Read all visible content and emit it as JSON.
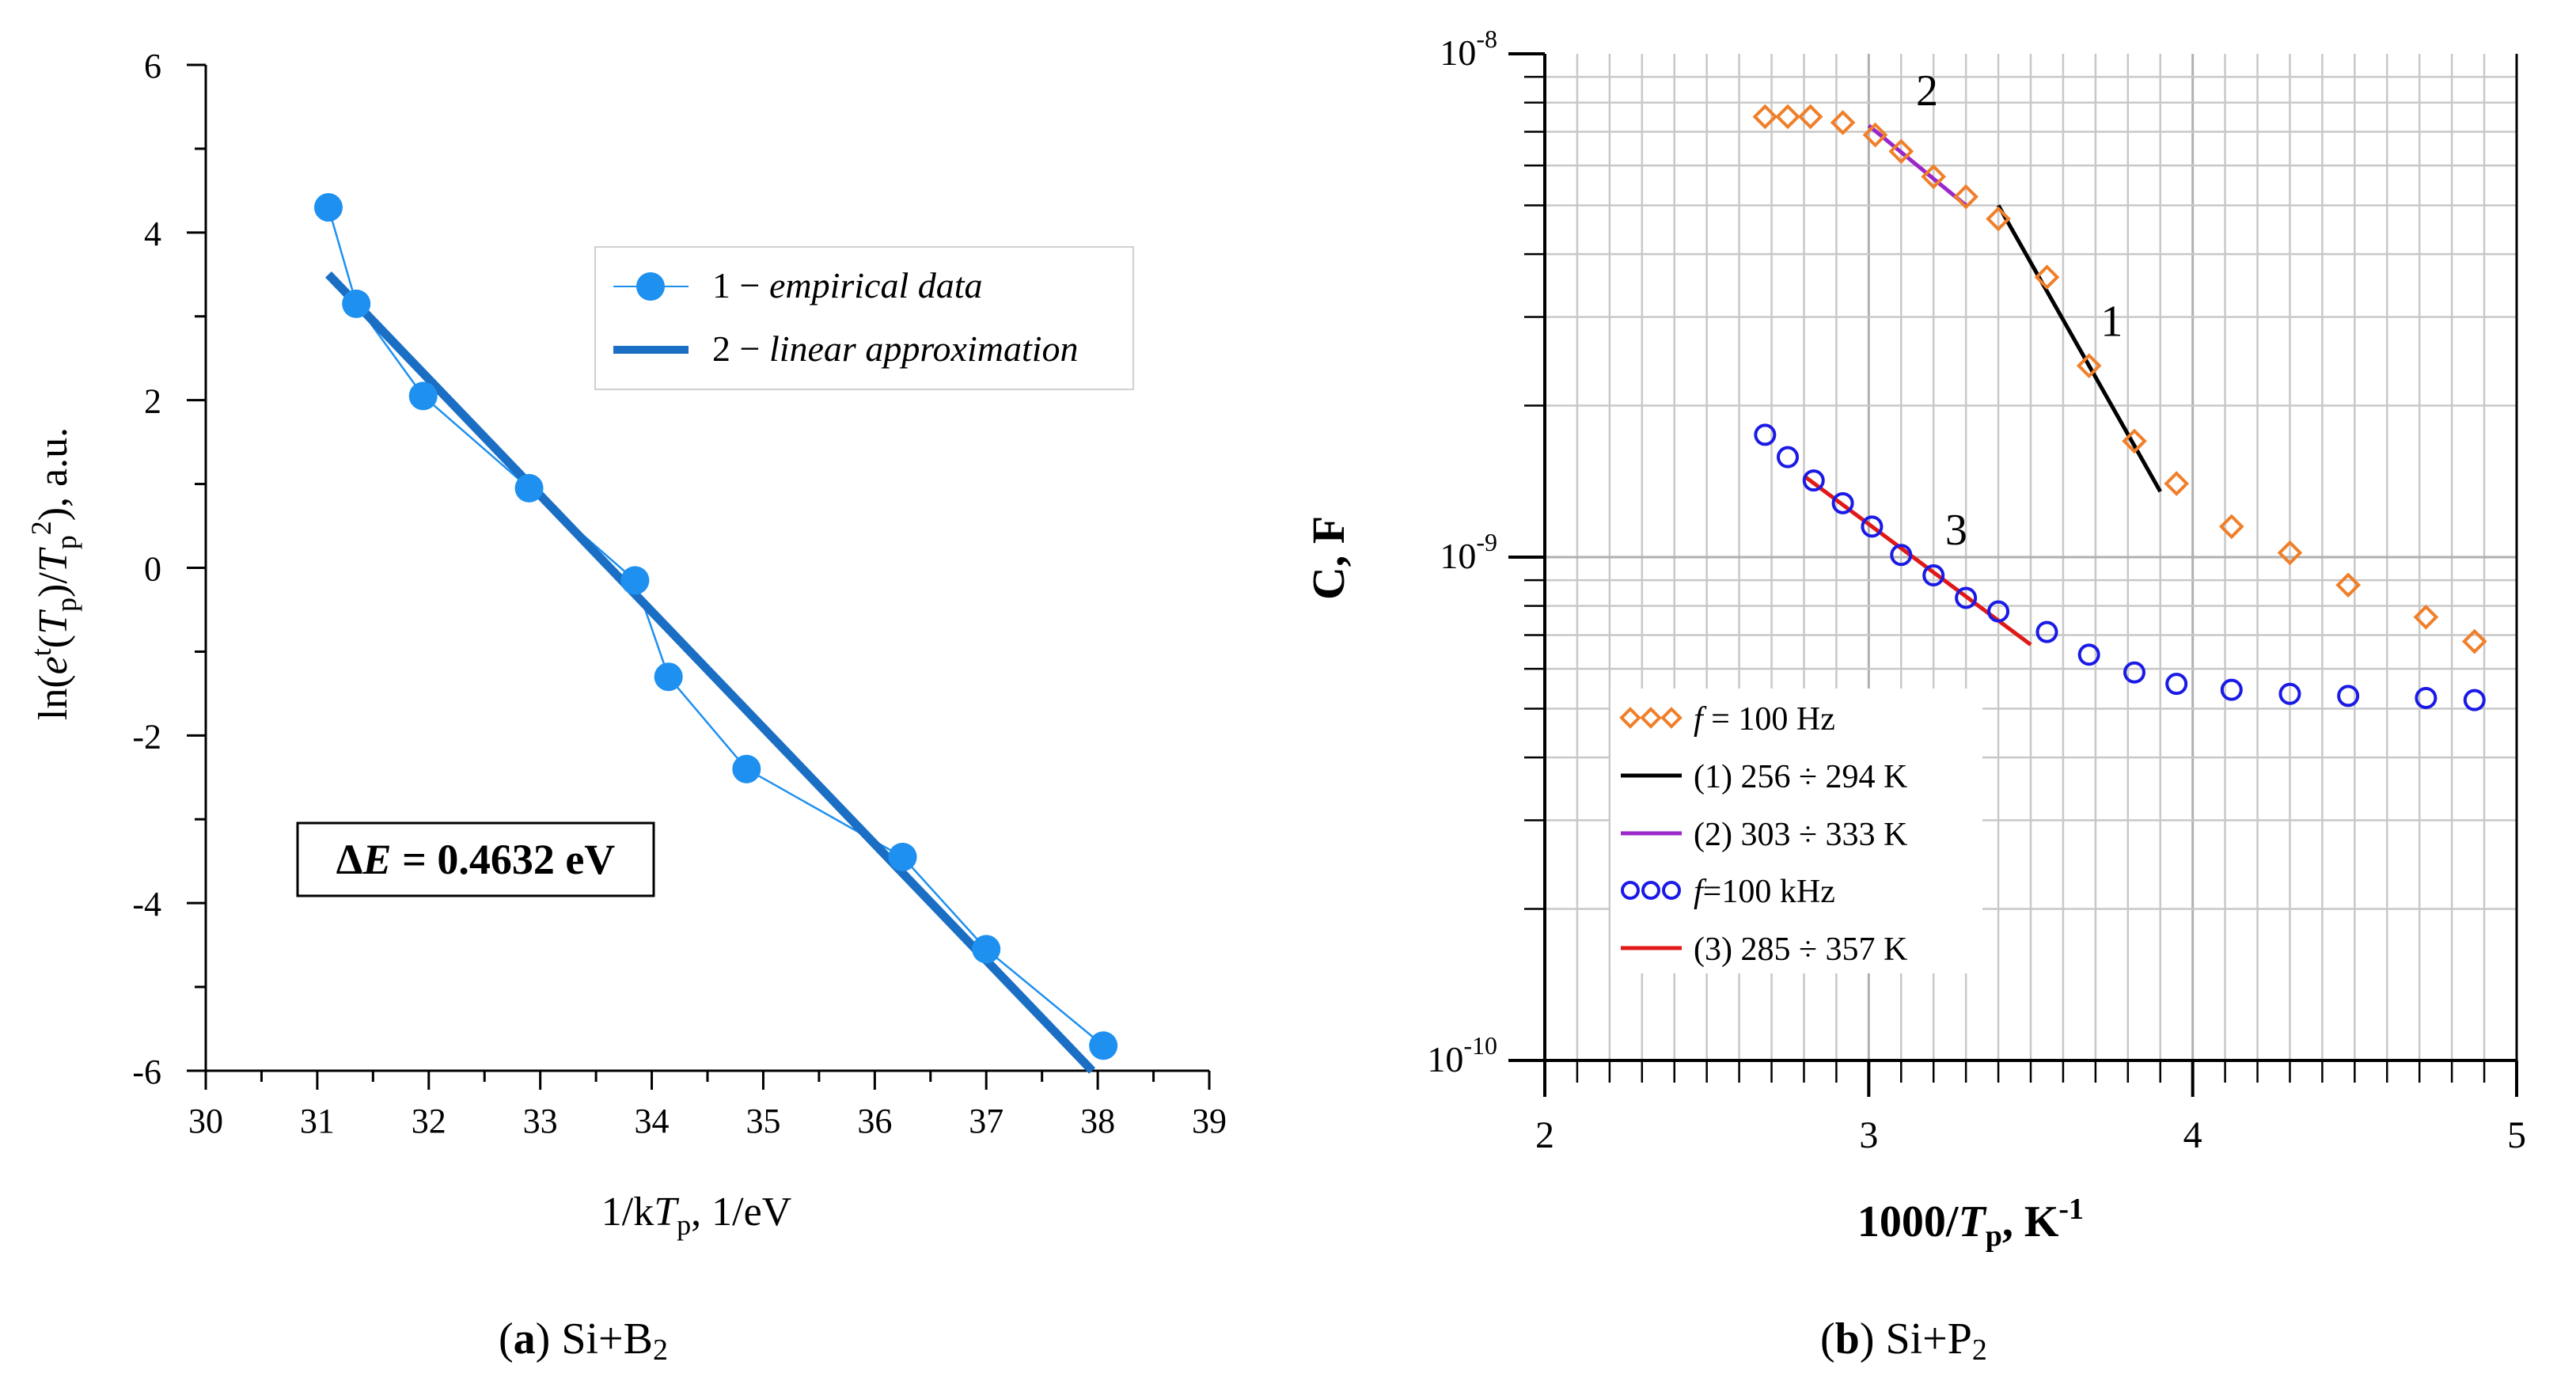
{
  "chart_data": [
    {
      "panel": "a",
      "type": "scatter",
      "caption": {
        "label": "a",
        "text": "Si+B",
        "sub": "2"
      },
      "xlabel": {
        "pre": "1/k",
        "it": "T",
        "sub": "p",
        "post": ", 1/eV"
      },
      "ylabel": {
        "pre": "ln(",
        "it1": "e",
        "sup1": "t",
        "mid": "(",
        "it2": "T",
        "sub2": "p",
        "mid2": ")/",
        "it3": "T",
        "sub3": "p",
        "sup3": "2",
        "post": "), a.u."
      },
      "xlim": [
        30,
        39
      ],
      "ylim": [
        -6,
        6
      ],
      "xticks": [
        "30",
        "31",
        "32",
        "33",
        "34",
        "35",
        "36",
        "37",
        "38",
        "39"
      ],
      "yticks": [
        "-6",
        "-4",
        "-2",
        "0",
        "2",
        "4",
        "6"
      ],
      "grid": false,
      "legend_position": "top-right",
      "series": [
        {
          "name": "1 − empirical data",
          "num": "1 − ",
          "text": "empirical data",
          "kind": "line-markers",
          "color": "#1e90f0",
          "x": [
            31.1,
            31.35,
            31.95,
            32.9,
            33.85,
            34.15,
            34.85,
            36.25,
            37.0,
            38.05
          ],
          "y": [
            4.3,
            3.15,
            2.05,
            0.95,
            -0.15,
            -1.3,
            -2.4,
            -3.45,
            -4.55,
            -5.7
          ]
        },
        {
          "name": "2 − linear approximation",
          "num": "2 − ",
          "text": "linear approximation",
          "kind": "line",
          "color": "#1a6fc4",
          "x": [
            31.1,
            37.95
          ],
          "y": [
            3.5,
            -6.0
          ]
        }
      ],
      "annotation": {
        "delta": "Δ",
        "it": "E",
        "rest": " = 0.4632 eV"
      }
    },
    {
      "panel": "b",
      "type": "scatter",
      "caption": {
        "label": "b",
        "text": "Si+P",
        "sub": "2"
      },
      "xlabel": {
        "pre": "1000/",
        "it": "T",
        "sub": "p",
        "post": ", K",
        "sup": "-1"
      },
      "ylabel": "C, F",
      "xlim": [
        2,
        5
      ],
      "ylim": [
        1e-10,
        1e-08
      ],
      "yscale": "log",
      "xticks": [
        "2",
        "3",
        "4",
        "5"
      ],
      "yticks": [
        {
          "base": "10",
          "exp": "-8",
          "value": 1e-08
        },
        {
          "base": "10",
          "exp": "-9",
          "value": 1e-09
        },
        {
          "base": "10",
          "exp": "-10",
          "value": 1e-10
        }
      ],
      "grid": true,
      "legend_position": "bottom-left",
      "series": [
        {
          "name": "f = 100 Hz",
          "it": "f",
          "text": " = 100 Hz",
          "kind": "markers-diamond",
          "color": "#f07f2a",
          "x": [
            2.68,
            2.75,
            2.82,
            2.92,
            3.02,
            3.1,
            3.2,
            3.3,
            3.4,
            3.55,
            3.68,
            3.82,
            3.95,
            4.12,
            4.3,
            4.48,
            4.72,
            4.87
          ],
          "y": [
            7.5e-09,
            7.5e-09,
            7.5e-09,
            7.3e-09,
            6.9e-09,
            6.4e-09,
            5.7e-09,
            5.2e-09,
            4.7e-09,
            3.6e-09,
            2.4e-09,
            1.7e-09,
            1.4e-09,
            1.15e-09,
            1.02e-09,
            8.8e-10,
            7.6e-10,
            6.8e-10
          ]
        },
        {
          "name": "(1) 256 ÷ 294 K",
          "text": "(1) 256 ÷ 294 K",
          "kind": "line",
          "color": "#000000",
          "x": [
            3.4,
            3.9
          ],
          "y": [
            5e-09,
            1.35e-09
          ]
        },
        {
          "name": "(2) 303 ÷ 333 K",
          "text": "(2) 303 ÷ 333 K",
          "kind": "line",
          "color": "#9b27c9",
          "x": [
            3.0,
            3.3
          ],
          "y": [
            7.2e-09,
            5e-09
          ]
        },
        {
          "name": "f=100 kHz",
          "it": "f",
          "text": "=100 kHz",
          "kind": "markers-circle",
          "color": "#1a1ae6",
          "x": [
            2.68,
            2.75,
            2.83,
            2.92,
            3.01,
            3.1,
            3.2,
            3.3,
            3.4,
            3.55,
            3.68,
            3.82,
            3.95,
            4.12,
            4.3,
            4.48,
            4.72,
            4.87
          ],
          "y": [
            1.75e-09,
            1.58e-09,
            1.42e-09,
            1.28e-09,
            1.15e-09,
            1.01e-09,
            9.2e-10,
            8.3e-10,
            7.8e-10,
            7.1e-10,
            6.4e-10,
            5.9e-10,
            5.6e-10,
            5.45e-10,
            5.35e-10,
            5.3e-10,
            5.25e-10,
            5.2e-10
          ]
        },
        {
          "name": "(3) 285 ÷ 357 K",
          "text": "(3) 285 ÷ 357 K",
          "kind": "line",
          "color": "#e01818",
          "x": [
            2.8,
            3.5
          ],
          "y": [
            1.45e-09,
            6.7e-10
          ]
        }
      ],
      "curve_labels": [
        {
          "text": "2",
          "x": 3.18,
          "y": 7.9e-09
        },
        {
          "text": "1",
          "x": 3.75,
          "y": 2.75e-09
        },
        {
          "text": "3",
          "x": 3.27,
          "y": 1.06e-09
        }
      ]
    }
  ]
}
